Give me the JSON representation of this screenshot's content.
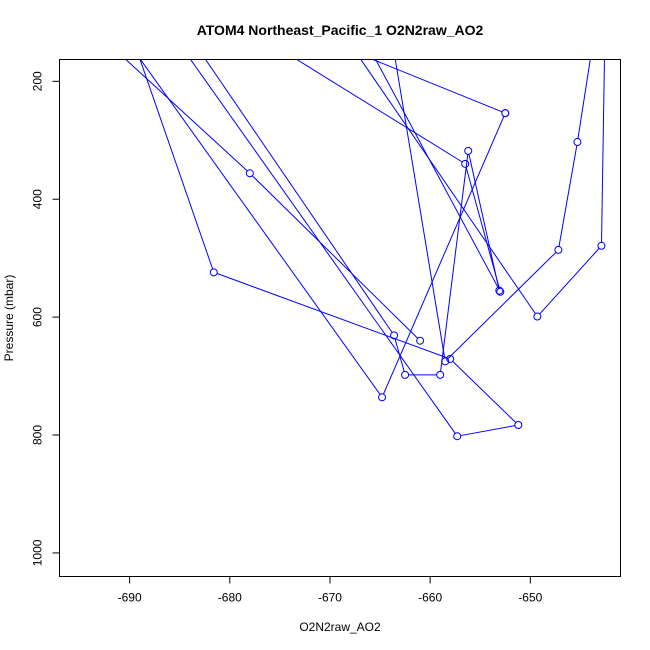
{
  "chart_data": {
    "type": "line",
    "title": "ATOM4 Northeast_Pacific_1 O2N2raw_AO2",
    "xlabel": "O2N2raw_AO2",
    "ylabel": "Pressure (mbar)",
    "xlim": [
      -697,
      -641
    ],
    "ylim": [
      1040,
      163
    ],
    "y_reversed": true,
    "xticks": [
      -690,
      -680,
      -670,
      -660,
      -650
    ],
    "yticks": [
      200,
      400,
      600,
      800,
      1000
    ],
    "grid": false,
    "series_color": "#0000FF",
    "series": [
      {
        "x": [
          -661.0,
          -678.0,
          -690.5
        ],
        "y": [
          640,
          356,
          161
        ],
        "markers": [
          true,
          true,
          false
        ]
      },
      {
        "x": [
          -652.5,
          -664.8,
          -689.0,
          -681.6,
          -658.0,
          -651.2,
          -657.3,
          -684.0
        ],
        "y": [
          254,
          736,
          161,
          524,
          671,
          783,
          802,
          161
        ],
        "markers": [
          true,
          true,
          false,
          true,
          true,
          true,
          true,
          false
        ]
      },
      {
        "x": [
          -673.5,
          -656.5,
          -653.0,
          -665.5
        ],
        "y": [
          161,
          340,
          557,
          161
        ],
        "markers": [
          false,
          true,
          true,
          false
        ]
      },
      {
        "x": [
          -667.0,
          -649.3,
          -642.9,
          -642.6
        ],
        "y": [
          161,
          599,
          479,
          161
        ],
        "markers": [
          false,
          true,
          true,
          false
        ]
      },
      {
        "x": [
          -663.5,
          -658.5,
          -647.2,
          -645.3,
          -644.0
        ],
        "y": [
          161,
          675,
          486,
          303,
          161
        ],
        "markers": [
          false,
          true,
          true,
          true,
          false
        ]
      },
      {
        "x": [
          -682.5,
          -663.6,
          -662.5,
          -659.0,
          -656.2,
          -653.1
        ],
        "y": [
          161,
          631,
          698,
          698,
          318,
          555
        ],
        "markers": [
          false,
          true,
          true,
          true,
          true,
          true
        ]
      },
      {
        "x": [
          -666.0,
          -652.5
        ],
        "y": [
          161,
          254
        ],
        "markers": [
          false,
          true
        ]
      }
    ]
  }
}
